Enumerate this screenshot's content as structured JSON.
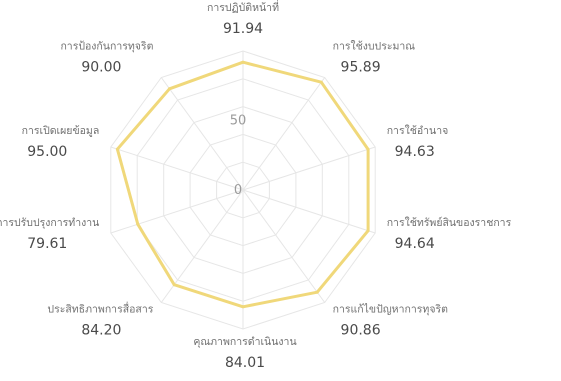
{
  "chart_data": {
    "type": "radar",
    "categories": [
      "การปฏิบัติหน้าที่",
      "การใช้งบประมาณ",
      "การใช้อำนาจ",
      "การใช้ทรัพย์สินของราชการ",
      "การแก้ไขปัญหาการทุจริต",
      "คุณภาพการดำเนินงาน",
      "ประสิทธิภาพการสื่อสาร",
      "การปรับปรุงการทำงาน",
      "การเปิดเผยข้อมูล",
      "การป้องกันการทุจริต"
    ],
    "values": [
      91.94,
      95.89,
      94.63,
      94.64,
      90.86,
      84.01,
      84.2,
      79.61,
      95.0,
      90.0
    ],
    "value_labels": [
      "91.94",
      "95.89",
      "94.63",
      "94.64",
      "90.86",
      "84.01",
      "84.20",
      "79.61",
      "95.00",
      "90.00"
    ],
    "rlim": [
      0,
      100
    ],
    "ticks": [
      {
        "value": 0,
        "label": "0"
      },
      {
        "value": 50,
        "label": "50"
      }
    ],
    "grid": true,
    "colors": {
      "series": "#f0d87a",
      "grid": "#e6e6e6"
    }
  }
}
